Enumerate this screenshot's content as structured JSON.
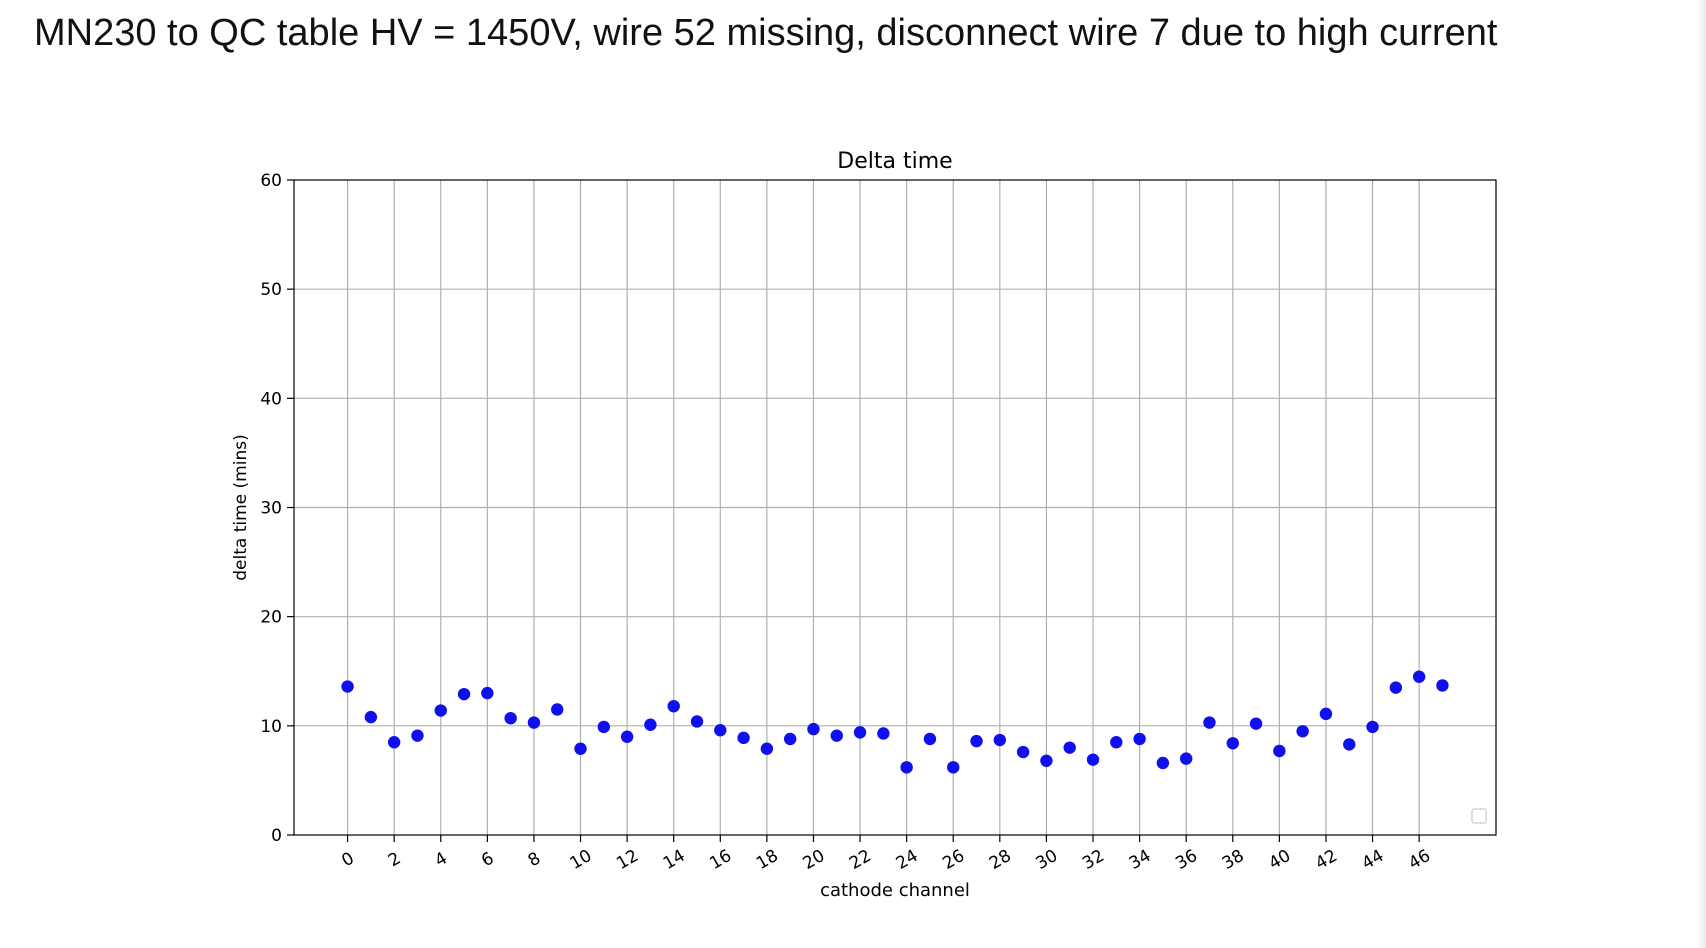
{
  "slide": {
    "title": "MN230 to QC table HV = 1450V, wire 52 missing, disconnect wire 7 due to high current"
  },
  "chart_data": {
    "type": "scatter",
    "title": "Delta time",
    "xlabel": "cathode channel",
    "ylabel": "delta time (mins)",
    "xlim": [
      -2.3,
      49.3
    ],
    "ylim": [
      0,
      60
    ],
    "xticks": [
      0,
      2,
      4,
      6,
      8,
      10,
      12,
      14,
      16,
      18,
      20,
      22,
      24,
      26,
      28,
      30,
      32,
      34,
      36,
      38,
      40,
      42,
      44,
      46
    ],
    "yticks": [
      0,
      10,
      20,
      30,
      40,
      50,
      60
    ],
    "grid": true,
    "legend": "lower-right (empty)",
    "marker_color": "#1010ee",
    "x": [
      0,
      1,
      2,
      3,
      4,
      5,
      6,
      7,
      8,
      9,
      10,
      11,
      12,
      13,
      14,
      15,
      16,
      17,
      18,
      19,
      20,
      21,
      22,
      23,
      24,
      25,
      26,
      27,
      28,
      29,
      30,
      31,
      32,
      33,
      34,
      35,
      36,
      37,
      38,
      39,
      40,
      41,
      42,
      43,
      44,
      45,
      46,
      47
    ],
    "y": [
      13.6,
      10.8,
      8.5,
      9.1,
      11.4,
      12.9,
      13.0,
      10.7,
      10.3,
      11.5,
      7.9,
      9.9,
      9.0,
      10.1,
      11.8,
      10.4,
      9.6,
      8.9,
      7.9,
      8.8,
      9.7,
      9.1,
      9.4,
      9.3,
      6.2,
      8.8,
      6.2,
      8.6,
      8.7,
      7.6,
      6.8,
      8.0,
      6.9,
      8.5,
      8.8,
      6.6,
      7.0,
      10.3,
      8.4,
      10.2,
      7.7,
      9.5,
      11.1,
      8.3,
      9.9,
      13.5,
      14.5,
      13.7
    ]
  }
}
